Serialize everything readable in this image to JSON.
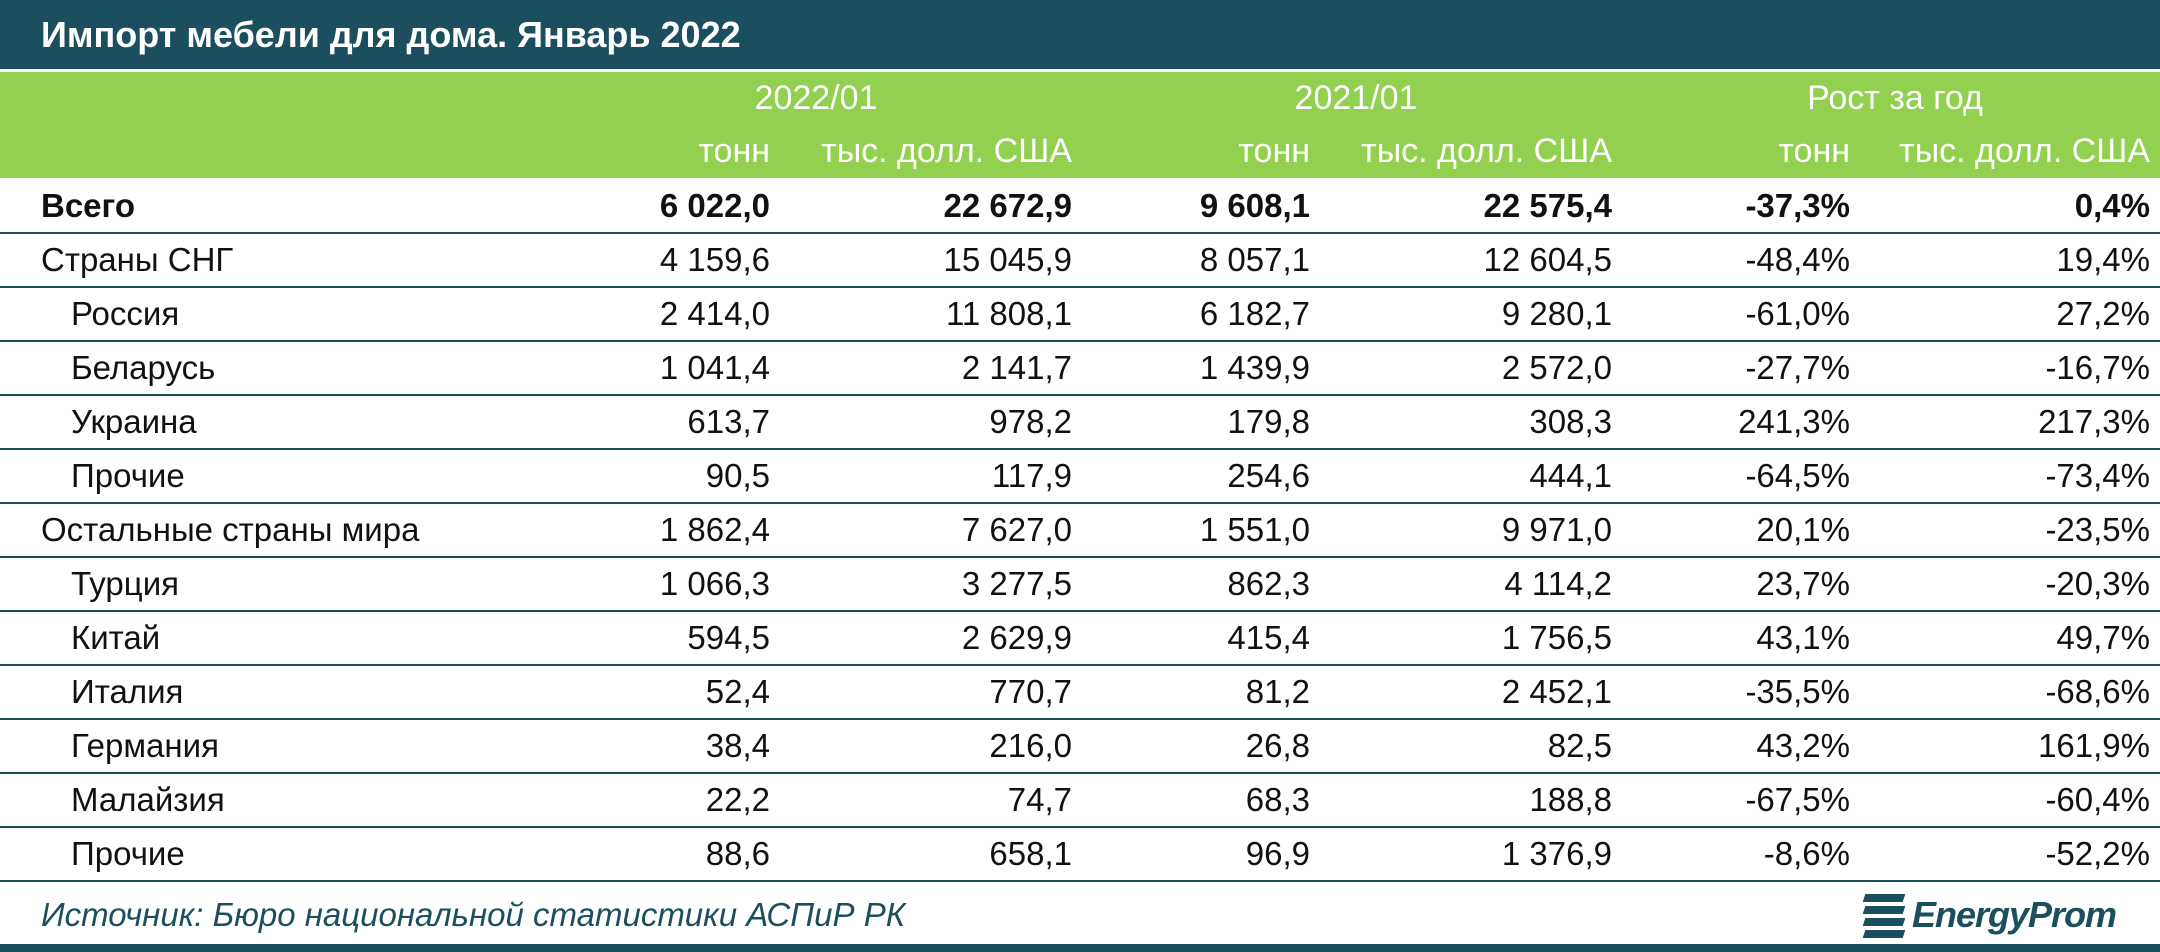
{
  "title": "Импорт мебели для дома. Январь 2022",
  "header": {
    "groups": [
      "2022/01",
      "2021/01",
      "Рост за год"
    ],
    "subheaders": [
      "тонн",
      "тыс. долл. США",
      "тонн",
      "тыс. долл. США",
      "тонн",
      "тыс. долл. США"
    ]
  },
  "rows": [
    {
      "name": "Всего",
      "values": [
        "6 022,0",
        "22 672,9",
        "9 608,1",
        "22 575,4",
        "-37,3%",
        "0,4%"
      ]
    },
    {
      "name": "Страны СНГ",
      "values": [
        "4 159,6",
        "15 045,9",
        "8 057,1",
        "12 604,5",
        "-48,4%",
        "19,4%"
      ]
    },
    {
      "name": "Россия",
      "values": [
        "2 414,0",
        "11 808,1",
        "6 182,7",
        "9 280,1",
        "-61,0%",
        "27,2%"
      ]
    },
    {
      "name": "Беларусь",
      "values": [
        "1 041,4",
        "2 141,7",
        "1 439,9",
        "2 572,0",
        "-27,7%",
        "-16,7%"
      ]
    },
    {
      "name": "Украина",
      "values": [
        "613,7",
        "978,2",
        "179,8",
        "308,3",
        "241,3%",
        "217,3%"
      ]
    },
    {
      "name": "Прочие",
      "values": [
        "90,5",
        "117,9",
        "254,6",
        "444,1",
        "-64,5%",
        "-73,4%"
      ]
    },
    {
      "name": "Остальные страны мира",
      "values": [
        "1 862,4",
        "7 627,0",
        "1 551,0",
        "9 971,0",
        "20,1%",
        "-23,5%"
      ]
    },
    {
      "name": "Турция",
      "values": [
        "1 066,3",
        "3 277,5",
        "862,3",
        "4 114,2",
        "23,7%",
        "-20,3%"
      ]
    },
    {
      "name": "Китай",
      "values": [
        "594,5",
        "2 629,9",
        "415,4",
        "1 756,5",
        "43,1%",
        "49,7%"
      ]
    },
    {
      "name": "Италия",
      "values": [
        "52,4",
        "770,7",
        "81,2",
        "2 452,1",
        "-35,5%",
        "-68,6%"
      ]
    },
    {
      "name": "Германия",
      "values": [
        "38,4",
        "216,0",
        "26,8",
        "82,5",
        "43,2%",
        "161,9%"
      ]
    },
    {
      "name": "Малайзия",
      "values": [
        "22,2",
        "74,7",
        "68,3",
        "188,8",
        "-67,5%",
        "-60,4%"
      ]
    },
    {
      "name": "Прочие",
      "values": [
        "88,6",
        "658,1",
        "96,9",
        "1 376,9",
        "-8,6%",
        "-52,2%"
      ]
    }
  ],
  "source": "Источник: Бюро национальной статистики АСПиР РК",
  "logo": "EnergyProm",
  "colors": {
    "title_bg": "#1b4f5e",
    "header_bg": "#92d050",
    "header_text": "#ffffff",
    "rule": "#1b4f5e"
  }
}
